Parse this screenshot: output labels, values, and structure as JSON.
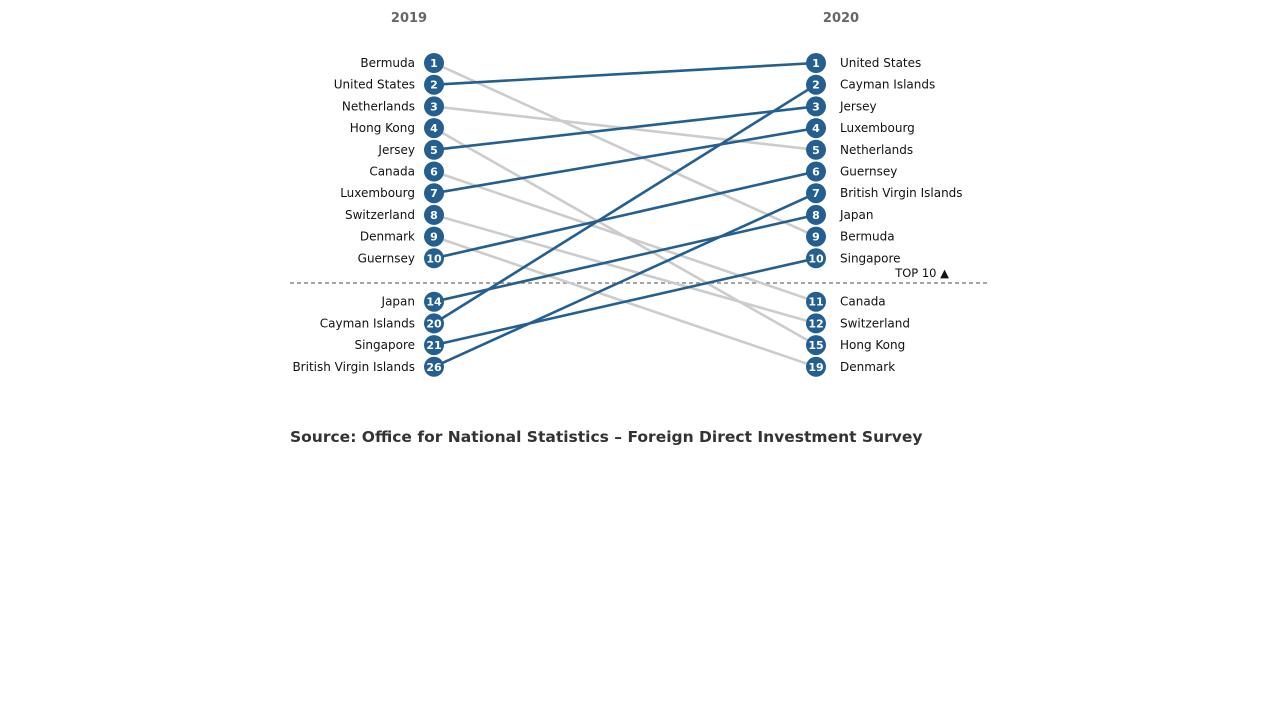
{
  "chart_data": {
    "type": "slope",
    "x": [
      "2019",
      "2020"
    ],
    "cutoff_label": "TOP 10 ▲",
    "top_n": 10,
    "colors": {
      "rising": "#245f8f",
      "falling": "#cccccc",
      "badge": "#245f8f",
      "cutoff": "#888888"
    },
    "series": [
      {
        "name": "Bermuda",
        "rank_2019": 1,
        "rank_2020": 9
      },
      {
        "name": "United States",
        "rank_2019": 2,
        "rank_2020": 1
      },
      {
        "name": "Netherlands",
        "rank_2019": 3,
        "rank_2020": 5
      },
      {
        "name": "Hong Kong",
        "rank_2019": 4,
        "rank_2020": 15
      },
      {
        "name": "Jersey",
        "rank_2019": 5,
        "rank_2020": 3
      },
      {
        "name": "Canada",
        "rank_2019": 6,
        "rank_2020": 11
      },
      {
        "name": "Luxembourg",
        "rank_2019": 7,
        "rank_2020": 4
      },
      {
        "name": "Switzerland",
        "rank_2019": 8,
        "rank_2020": 12
      },
      {
        "name": "Denmark",
        "rank_2019": 9,
        "rank_2020": 19
      },
      {
        "name": "Guernsey",
        "rank_2019": 10,
        "rank_2020": 6
      },
      {
        "name": "Japan",
        "rank_2019": 14,
        "rank_2020": 8
      },
      {
        "name": "Cayman Islands",
        "rank_2019": 20,
        "rank_2020": 2
      },
      {
        "name": "Singapore",
        "rank_2019": 21,
        "rank_2020": 10
      },
      {
        "name": "British Virgin Islands",
        "rank_2019": 26,
        "rank_2020": 7
      }
    ],
    "source": "Source: Office for National Statistics – Foreign Direct Investment Survey"
  }
}
